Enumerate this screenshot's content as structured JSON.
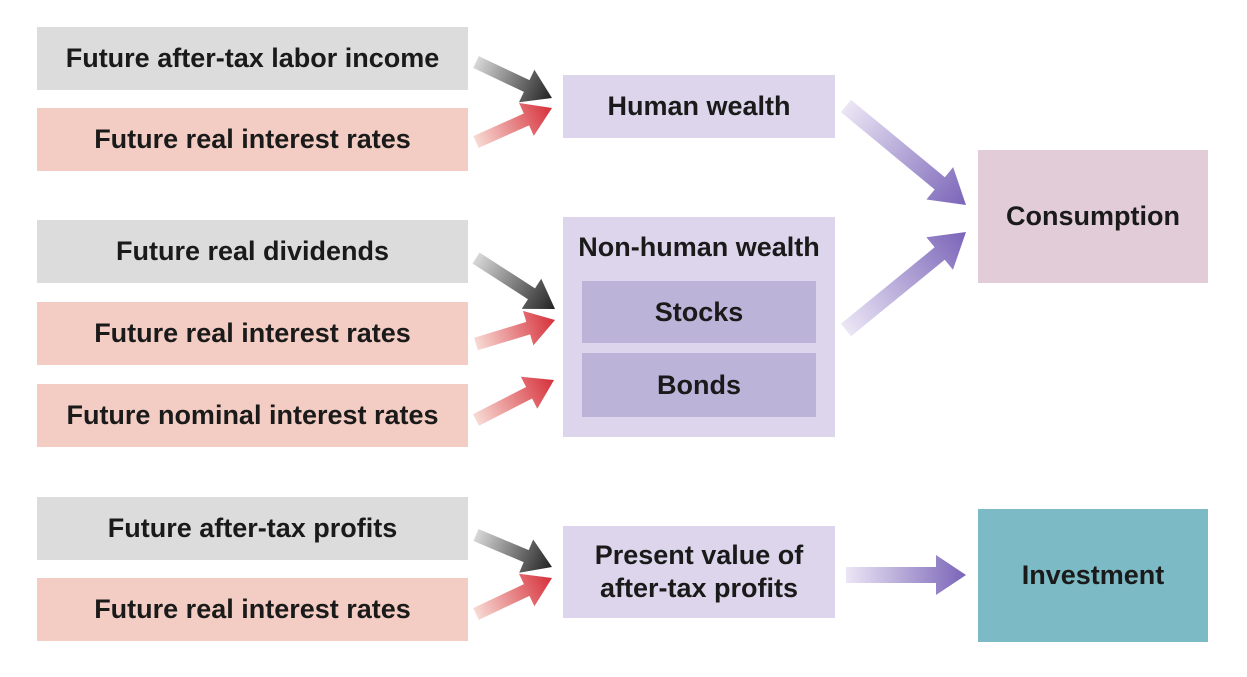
{
  "nodes": {
    "labor_income": "Future after-tax labor income",
    "real_rates_1": "Future real interest rates",
    "real_dividends": "Future real dividends",
    "real_rates_2": "Future real interest rates",
    "nominal_rates": "Future nominal interest rates",
    "after_tax_profits": "Future after-tax profits",
    "real_rates_3": "Future real interest rates",
    "human_wealth": "Human wealth",
    "nonhuman_wealth": "Non-human wealth",
    "stocks": "Stocks",
    "bonds": "Bonds",
    "present_value_line1": "Present value of",
    "present_value_line2": "after-tax profits",
    "consumption": "Consumption",
    "investment": "Investment"
  },
  "colors": {
    "input_gray": "#dcdcdc",
    "input_pink": "#f3cdc3",
    "wealth_lavender": "#dcd5eb",
    "asset_purple": "#bcb3d9",
    "consumption": "#e2ccd8",
    "investment": "#7cbac5",
    "arrow_dark": "#222222",
    "arrow_red": "#d6303a",
    "arrow_purple": "#7a64b8"
  }
}
